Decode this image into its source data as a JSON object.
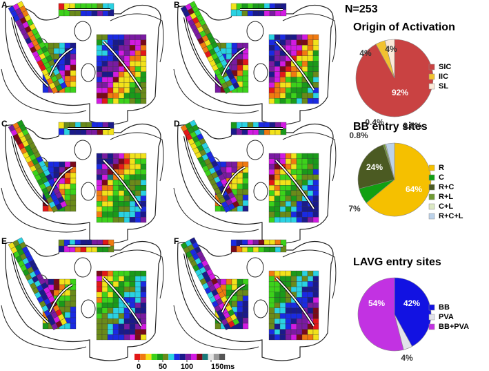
{
  "figure": {
    "title": "N=253",
    "panels": [
      "A",
      "B",
      "C",
      "D",
      "E",
      "F"
    ],
    "colorbar": {
      "xlim": [
        0,
        150
      ],
      "ticks": [
        0,
        50,
        100,
        {
          "value": 150,
          "label": "150ms"
        }
      ]
    }
  },
  "chart_data": [
    {
      "type": "pie",
      "title": "Origin of Activation",
      "categories": [
        "SIC",
        "IIC",
        "SL"
      ],
      "values": [
        92,
        4,
        4
      ],
      "value_labels": [
        "92%",
        "4%",
        "4%"
      ],
      "colors": [
        "#c94242",
        "#f2c230",
        "#fbe9d9"
      ]
    },
    {
      "type": "pie",
      "title": "BB entry sites",
      "categories": [
        "R",
        "C",
        "R+C",
        "R+L",
        "C+L",
        "R+C+L"
      ],
      "values": [
        64,
        7,
        24,
        0.8,
        0.4,
        3.8
      ],
      "value_labels": [
        "64%",
        "7%",
        "24%",
        "0.8%",
        "0.4%",
        "3.8%"
      ],
      "colors": [
        "#f5c000",
        "#12a012",
        "#4b5a22",
        "#6f9a33",
        "#dce9c4",
        "#bcd2ea"
      ]
    },
    {
      "type": "pie",
      "title": "LAVG entry sites",
      "categories": [
        "BB",
        "PVA",
        "BB+PVA"
      ],
      "values": [
        42,
        4,
        54
      ],
      "value_labels": [
        "42%",
        "4%",
        "54%"
      ],
      "colors": [
        "#1212e2",
        "#e2e2ea",
        "#c232e2"
      ]
    }
  ]
}
